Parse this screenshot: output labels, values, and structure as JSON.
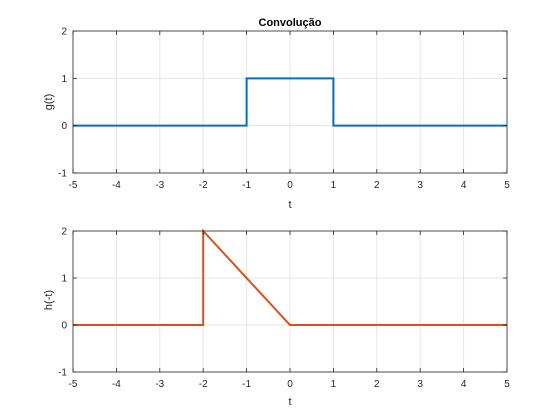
{
  "chart_data": [
    {
      "type": "line",
      "title": "Convolução",
      "xlabel": "t",
      "ylabel": "g(t)",
      "xlim": [
        -5,
        5
      ],
      "ylim": [
        -1,
        2
      ],
      "xticks": [
        -5,
        -4,
        -3,
        -2,
        -1,
        0,
        1,
        2,
        3,
        4,
        5
      ],
      "yticks": [
        -1,
        0,
        1,
        2
      ],
      "grid": true,
      "color": "#0072BD",
      "series": [
        {
          "x": [
            -5,
            -1,
            -1,
            1,
            1,
            5
          ],
          "y": [
            0,
            0,
            1,
            1,
            0,
            0
          ]
        }
      ]
    },
    {
      "type": "line",
      "title": "",
      "xlabel": "t",
      "ylabel": "h(-t)",
      "xlim": [
        -5,
        5
      ],
      "ylim": [
        -1,
        2
      ],
      "xticks": [
        -5,
        -4,
        -3,
        -2,
        -1,
        0,
        1,
        2,
        3,
        4,
        5
      ],
      "yticks": [
        -1,
        0,
        1,
        2
      ],
      "grid": true,
      "color": "#D95319",
      "series": [
        {
          "x": [
            -5,
            -2,
            -2,
            0,
            5
          ],
          "y": [
            0,
            0,
            2,
            0,
            0
          ]
        }
      ]
    }
  ]
}
